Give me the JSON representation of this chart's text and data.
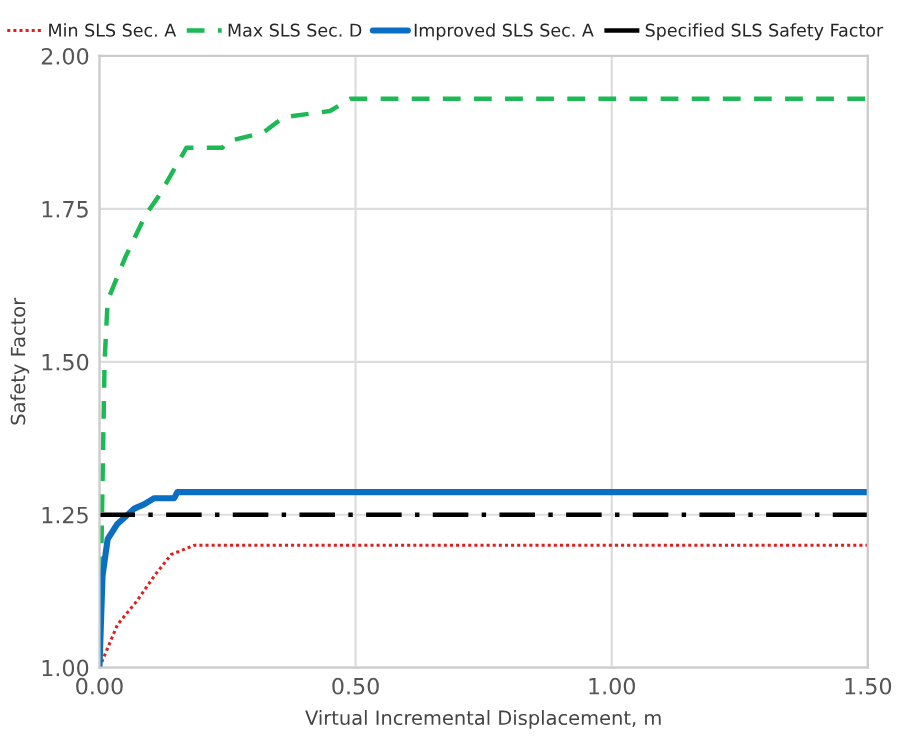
{
  "chart_data": {
    "type": "line",
    "xlabel": "Virtual Incremental Displacement, m",
    "ylabel": "Safety Factor",
    "xlim": [
      0,
      1.5
    ],
    "xticks": [
      {
        "value": 0,
        "label": "0.00"
      },
      {
        "value": 0.5,
        "label": "0.50"
      },
      {
        "value": 1,
        "label": "1.00"
      },
      {
        "value": 1.5,
        "label": "1.50"
      }
    ],
    "ylim": [
      1,
      2
    ],
    "yticks": [
      {
        "value": 1,
        "label": "1.00"
      },
      {
        "value": 1.25,
        "label": "1.25"
      },
      {
        "value": 1.5,
        "label": "1.50"
      },
      {
        "value": 1.75,
        "label": "1.75"
      },
      {
        "value": 2,
        "label": "2.00"
      }
    ],
    "grid": true,
    "legend": "top",
    "marker": "none",
    "series": [
      {
        "name": "Min SLS Sec. A",
        "color": "#e02020",
        "line_style": "dotted",
        "x": [
          0,
          0.035,
          0.074,
          0.107,
          0.14,
          0.185,
          1.5
        ],
        "values": [
          1.0,
          1.07,
          1.11,
          1.15,
          1.185,
          1.2,
          1.2
        ]
      },
      {
        "name": "Max SLS Sec. D",
        "color": "#1db954",
        "line_style": "dashed",
        "x": [
          0,
          0.01,
          0.016,
          0.05,
          0.09,
          0.115,
          0.17,
          0.24,
          0.25,
          0.32,
          0.36,
          0.45,
          0.49,
          1.5
        ],
        "values": [
          1.0,
          1.5,
          1.6,
          1.67,
          1.74,
          1.77,
          1.85,
          1.85,
          1.86,
          1.875,
          1.9,
          1.91,
          1.93,
          1.93
        ]
      },
      {
        "name": "Improved SLS Sec. A",
        "color": "#0a6fc2",
        "line_style": "solid",
        "x": [
          0,
          0.006,
          0.016,
          0.035,
          0.055,
          0.068,
          0.087,
          0.107,
          0.146,
          0.152,
          1.5
        ],
        "values": [
          1.0,
          1.15,
          1.21,
          1.235,
          1.25,
          1.26,
          1.267,
          1.277,
          1.277,
          1.287,
          1.287
        ]
      },
      {
        "name": "Specified SLS Safety Factor",
        "color": "#000000",
        "line_style": "dashdot",
        "x": [
          0,
          1.5
        ],
        "values": [
          1.25,
          1.25
        ]
      }
    ]
  }
}
